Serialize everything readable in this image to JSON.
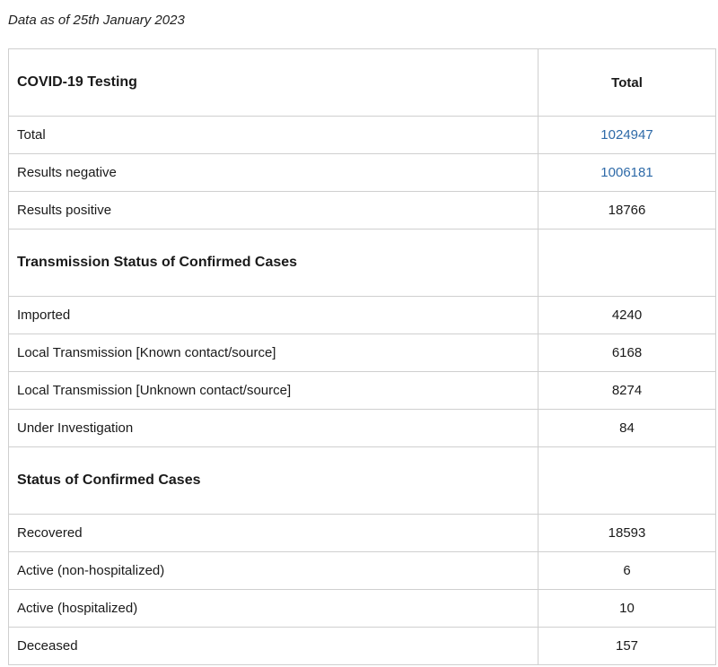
{
  "as_of": "Data as of 25th January 2023",
  "table": {
    "header": {
      "title": "COVID-19 Testing",
      "total_label": "Total"
    },
    "testing_rows": [
      {
        "label": "Total",
        "value": "1024947",
        "link": true
      },
      {
        "label": "Results negative",
        "value": "1006181",
        "link": true
      },
      {
        "label": "Results positive",
        "value": "18766",
        "link": false
      }
    ],
    "transmission_title": "Transmission Status of Confirmed Cases",
    "transmission_rows": [
      {
        "label": "Imported",
        "value": "4240"
      },
      {
        "label": "Local Transmission [Known contact/source]",
        "value": "6168"
      },
      {
        "label": "Local Transmission [Unknown contact/source]",
        "value": "8274"
      },
      {
        "label": "Under Investigation",
        "value": "84"
      }
    ],
    "status_title": "Status of Confirmed Cases",
    "status_rows": [
      {
        "label": "Recovered",
        "value": "18593"
      },
      {
        "label": "Active (non-hospitalized)",
        "value": "6"
      },
      {
        "label": "Active (hospitalized)",
        "value": "10"
      },
      {
        "label": "Deceased",
        "value": "157"
      }
    ]
  },
  "colors": {
    "link": "#2e6aa8",
    "border": "#cfcfcf"
  }
}
